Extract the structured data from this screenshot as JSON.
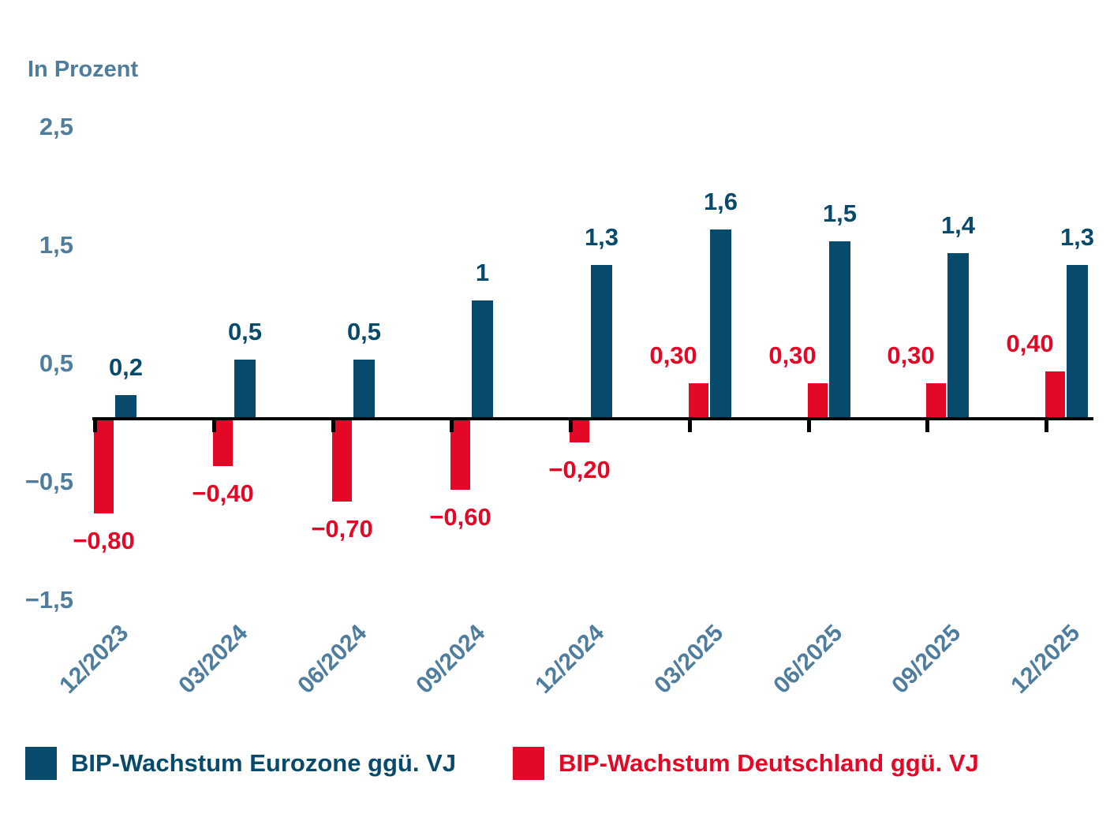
{
  "chart_data": {
    "type": "bar",
    "title": "In Prozent",
    "categories": [
      "12/2023",
      "03/2024",
      "06/2024",
      "09/2024",
      "12/2024",
      "03/2025",
      "06/2025",
      "09/2025",
      "12/2025"
    ],
    "series": [
      {
        "name": "BIP-Wachstum Eurozone ggü. VJ",
        "color": "#084a6c",
        "values": [
          0.2,
          0.5,
          0.5,
          1,
          1.3,
          1.6,
          1.5,
          1.4,
          1.3
        ],
        "value_labels": [
          "0,2",
          "0,5",
          "0,5",
          "1",
          "1,3",
          "1,6",
          "1,5",
          "1,4",
          "1,3"
        ]
      },
      {
        "name": "BIP-Wachstum Deutschland ggü. VJ",
        "color": "#e30926",
        "values": [
          -0.8,
          -0.4,
          -0.7,
          -0.6,
          -0.2,
          0.3,
          0.3,
          0.3,
          0.4
        ],
        "value_labels": [
          "−0,80",
          "−0,40",
          "−0,70",
          "−0,60",
          "−0,20",
          "0,30",
          "0,30",
          "0,30",
          "0,40"
        ]
      }
    ],
    "ylabel": "In Prozent",
    "y_ticks": [
      {
        "label": "2,5",
        "value": 2.5
      },
      {
        "label": "1,5",
        "value": 1.5
      },
      {
        "label": "0,5",
        "value": 0.5
      },
      {
        "label": "−0,5",
        "value": -0.5
      },
      {
        "label": "−1,5",
        "value": -1.5
      }
    ],
    "ylim": [
      -1.5,
      2.5
    ],
    "grid": false,
    "legend_position": "bottom",
    "axis_color": "#000000",
    "tick_label_color": "#4f7d9d"
  }
}
